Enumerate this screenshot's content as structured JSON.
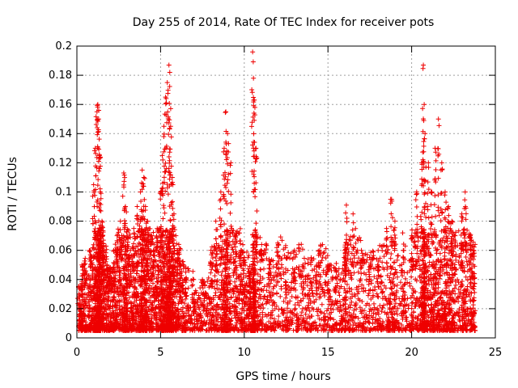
{
  "chart_data": {
    "type": "scatter",
    "title": "Day 255 of 2014, Rate Of TEC Index for receiver pots",
    "xlabel": "GPS time / hours",
    "ylabel": "ROTI / TECUs",
    "xlim": [
      0,
      25
    ],
    "ylim": [
      0,
      0.2
    ],
    "xticks": [
      0,
      5,
      10,
      15,
      20,
      25
    ],
    "yticks": [
      0,
      0.02,
      0.04,
      0.06,
      0.08,
      0.1,
      0.12,
      0.14,
      0.16,
      0.18,
      0.2
    ],
    "xtick_labels": [
      "0",
      "5",
      "10",
      "15",
      "20",
      "25"
    ],
    "ytick_labels": [
      "0",
      "0.02",
      "0.04",
      "0.06",
      "0.08",
      "0.1",
      "0.12",
      "0.14",
      "0.16",
      "0.18",
      "0.2"
    ],
    "grid": true,
    "marker": "+",
    "marker_color": "#ee0000",
    "series": [
      {
        "name": "ROTI",
        "x": [
          0.1,
          0.3,
          0.5,
          0.8,
          1.0,
          1.1,
          1.2,
          1.25,
          1.3,
          1.35,
          1.4,
          1.5,
          1.6,
          1.8,
          2.0,
          2.2,
          2.4,
          2.6,
          2.8,
          2.9,
          3.0,
          3.2,
          3.4,
          3.6,
          3.8,
          3.9,
          4.0,
          4.1,
          4.2,
          4.4,
          4.6,
          4.8,
          5.0,
          5.1,
          5.2,
          5.3,
          5.4,
          5.5,
          5.55,
          5.6,
          5.7,
          5.8,
          6.0,
          6.2,
          6.5,
          7.0,
          7.5,
          8.0,
          8.3,
          8.6,
          8.8,
          8.9,
          9.0,
          9.2,
          9.5,
          9.8,
          10.0,
          10.3,
          10.5,
          10.55,
          10.6,
          10.7,
          11.0,
          11.5,
          12.0,
          12.5,
          13.0,
          13.5,
          14.0,
          14.5,
          15.0,
          15.5,
          16.0,
          16.1,
          16.5,
          17.0,
          17.5,
          18.0,
          18.5,
          18.8,
          19.0,
          19.5,
          20.0,
          20.3,
          20.6,
          20.7,
          20.75,
          20.8,
          21.0,
          21.2,
          21.4,
          21.6,
          21.8,
          22.0,
          22.2,
          22.4,
          22.6,
          23.0,
          23.2,
          23.5,
          23.7
        ],
        "y": [
          0.035,
          0.05,
          0.045,
          0.06,
          0.105,
          0.13,
          0.155,
          0.16,
          0.15,
          0.125,
          0.1,
          0.08,
          0.06,
          0.05,
          0.045,
          0.06,
          0.07,
          0.08,
          0.113,
          0.09,
          0.07,
          0.06,
          0.075,
          0.09,
          0.1,
          0.115,
          0.11,
          0.09,
          0.08,
          0.07,
          0.06,
          0.075,
          0.1,
          0.125,
          0.145,
          0.165,
          0.175,
          0.187,
          0.182,
          0.145,
          0.11,
          0.085,
          0.06,
          0.05,
          0.045,
          0.03,
          0.04,
          0.06,
          0.08,
          0.1,
          0.13,
          0.155,
          0.14,
          0.12,
          0.07,
          0.06,
          0.055,
          0.045,
          0.196,
          0.178,
          0.163,
          0.13,
          0.06,
          0.05,
          0.065,
          0.055,
          0.06,
          0.05,
          0.055,
          0.06,
          0.05,
          0.045,
          0.06,
          0.091,
          0.085,
          0.06,
          0.055,
          0.06,
          0.075,
          0.095,
          0.08,
          0.06,
          0.07,
          0.1,
          0.12,
          0.187,
          0.16,
          0.14,
          0.12,
          0.1,
          0.13,
          0.15,
          0.12,
          0.1,
          0.09,
          0.08,
          0.07,
          0.085,
          0.1,
          0.07,
          0.06
        ]
      }
    ]
  }
}
